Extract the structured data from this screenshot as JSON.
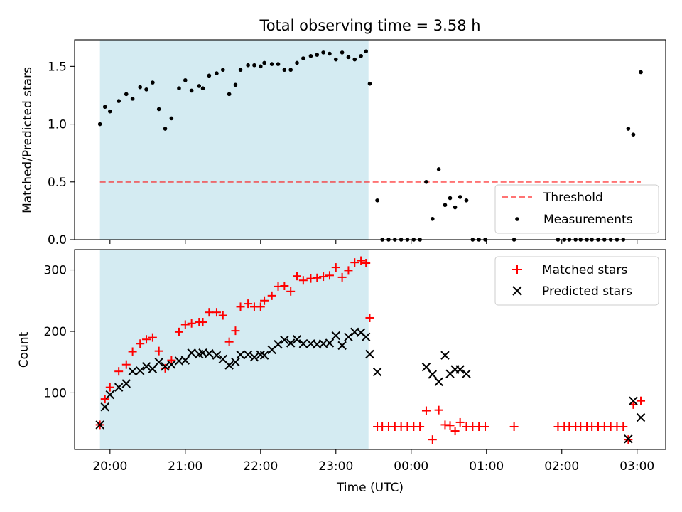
{
  "figure": {
    "title": "Total observing time = 3.58 h",
    "xlabel": "Time (UTC)"
  },
  "colors": {
    "band": "#add8e6",
    "threshold": "#ff0000",
    "measurements": "#000000",
    "matched": "#ff0000",
    "predicted": "#000000"
  },
  "chart_data": [
    {
      "type": "scatter",
      "panel": "top",
      "ylabel": "Matched/Predicted stars",
      "xlim_hours": [
        19.53,
        27.38
      ],
      "ylim": [
        0,
        1.73
      ],
      "yticks": [
        0.0,
        0.5,
        1.0,
        1.5
      ],
      "ytick_labels": [
        "0.0",
        "0.5",
        "1.0",
        "1.5"
      ],
      "xticks_hours": [
        20,
        21,
        22,
        23,
        24,
        25,
        26,
        27
      ],
      "xtick_labels": [
        "20:00",
        "21:00",
        "22:00",
        "23:00",
        "00:00",
        "01:00",
        "02:00",
        "03:00"
      ],
      "shaded_span": [
        "19:52",
        "23:26"
      ],
      "legend_position": "lower right",
      "threshold": {
        "name": "Threshold",
        "y": 0.5,
        "x_range": [
          "19:52",
          "03:03"
        ],
        "style": "dashed"
      },
      "series": [
        {
          "name": "Measurements",
          "marker": "dot",
          "points": [
            [
              "19:52",
              1.0
            ],
            [
              "19:56",
              1.15
            ],
            [
              "20:00",
              1.11
            ],
            [
              "20:07",
              1.2
            ],
            [
              "20:13",
              1.26
            ],
            [
              "20:18",
              1.22
            ],
            [
              "20:24",
              1.32
            ],
            [
              "20:29",
              1.3
            ],
            [
              "20:34",
              1.36
            ],
            [
              "20:39",
              1.13
            ],
            [
              "20:44",
              0.96
            ],
            [
              "20:49",
              1.05
            ],
            [
              "20:55",
              1.31
            ],
            [
              "21:00",
              1.38
            ],
            [
              "21:05",
              1.29
            ],
            [
              "21:11",
              1.33
            ],
            [
              "21:14",
              1.31
            ],
            [
              "21:19",
              1.42
            ],
            [
              "21:25",
              1.44
            ],
            [
              "21:30",
              1.47
            ],
            [
              "21:35",
              1.26
            ],
            [
              "21:40",
              1.34
            ],
            [
              "21:44",
              1.47
            ],
            [
              "21:50",
              1.51
            ],
            [
              "21:55",
              1.51
            ],
            [
              "22:00",
              1.5
            ],
            [
              "22:03",
              1.53
            ],
            [
              "22:09",
              1.52
            ],
            [
              "22:14",
              1.52
            ],
            [
              "22:19",
              1.47
            ],
            [
              "22:24",
              1.47
            ],
            [
              "22:29",
              1.53
            ],
            [
              "22:34",
              1.57
            ],
            [
              "22:40",
              1.59
            ],
            [
              "22:45",
              1.6
            ],
            [
              "22:50",
              1.62
            ],
            [
              "22:55",
              1.61
            ],
            [
              "23:00",
              1.56
            ],
            [
              "23:05",
              1.62
            ],
            [
              "23:10",
              1.58
            ],
            [
              "23:15",
              1.56
            ],
            [
              "23:20",
              1.59
            ],
            [
              "23:24",
              1.63
            ],
            [
              "23:27",
              1.35
            ],
            [
              "23:33",
              0.34
            ],
            [
              "23:37",
              0.0
            ],
            [
              "23:42",
              0.0
            ],
            [
              "23:47",
              0.0
            ],
            [
              "23:52",
              0.0
            ],
            [
              "23:57",
              0.0
            ],
            [
              "00:02",
              0.0
            ],
            [
              "00:07",
              0.0
            ],
            [
              "00:12",
              0.5
            ],
            [
              "00:17",
              0.18
            ],
            [
              "00:22",
              0.61
            ],
            [
              "00:27",
              0.3
            ],
            [
              "00:31",
              0.36
            ],
            [
              "00:35",
              0.28
            ],
            [
              "00:39",
              0.37
            ],
            [
              "00:44",
              0.34
            ],
            [
              "00:49",
              0.0
            ],
            [
              "00:54",
              0.0
            ],
            [
              "00:59",
              0.0
            ],
            [
              "01:22",
              0.0
            ],
            [
              "01:57",
              0.0
            ],
            [
              "02:02",
              0.0
            ],
            [
              "02:06",
              0.0
            ],
            [
              "02:11",
              0.0
            ],
            [
              "02:15",
              0.0
            ],
            [
              "02:20",
              0.0
            ],
            [
              "02:24",
              0.0
            ],
            [
              "02:29",
              0.0
            ],
            [
              "02:34",
              0.0
            ],
            [
              "02:39",
              0.0
            ],
            [
              "02:44",
              0.0
            ],
            [
              "02:49",
              0.0
            ],
            [
              "02:53",
              0.96
            ],
            [
              "02:57",
              0.91
            ],
            [
              "03:03",
              1.45
            ]
          ]
        }
      ]
    },
    {
      "type": "scatter",
      "panel": "bottom",
      "ylabel": "Count",
      "xlim_hours": [
        19.53,
        27.38
      ],
      "ylim": [
        8,
        333
      ],
      "yticks": [
        100,
        200,
        300
      ],
      "ytick_labels": [
        "100",
        "200",
        "300"
      ],
      "xticks_hours": [
        20,
        21,
        22,
        23,
        24,
        25,
        26,
        27
      ],
      "xtick_labels": [
        "20:00",
        "21:00",
        "22:00",
        "23:00",
        "00:00",
        "01:00",
        "02:00",
        "03:00"
      ],
      "shaded_span": [
        "19:52",
        "23:26"
      ],
      "legend_position": "upper right",
      "series": [
        {
          "name": "Matched stars",
          "marker": "plus",
          "points": [
            [
              "19:52",
              48
            ],
            [
              "19:56",
              90
            ],
            [
              "20:00",
              109
            ],
            [
              "20:07",
              135
            ],
            [
              "20:13",
              146
            ],
            [
              "20:18",
              167
            ],
            [
              "20:24",
              180
            ],
            [
              "20:29",
              187
            ],
            [
              "20:34",
              190
            ],
            [
              "20:39",
              168
            ],
            [
              "20:44",
              140
            ],
            [
              "20:49",
              153
            ],
            [
              "20:55",
              199
            ],
            [
              "21:00",
              211
            ],
            [
              "21:05",
              213
            ],
            [
              "21:11",
              215
            ],
            [
              "21:14",
              215
            ],
            [
              "21:19",
              231
            ],
            [
              "21:25",
              231
            ],
            [
              "21:30",
              226
            ],
            [
              "21:35",
              183
            ],
            [
              "21:40",
              201
            ],
            [
              "21:44",
              240
            ],
            [
              "21:50",
              245
            ],
            [
              "21:55",
              240
            ],
            [
              "22:00",
              240
            ],
            [
              "22:03",
              250
            ],
            [
              "22:09",
              258
            ],
            [
              "22:14",
              273
            ],
            [
              "22:19",
              274
            ],
            [
              "22:24",
              265
            ],
            [
              "22:29",
              290
            ],
            [
              "22:34",
              283
            ],
            [
              "22:40",
              286
            ],
            [
              "22:45",
              287
            ],
            [
              "22:50",
              289
            ],
            [
              "22:55",
              291
            ],
            [
              "23:00",
              304
            ],
            [
              "23:05",
              288
            ],
            [
              "23:10",
              299
            ],
            [
              "23:15",
              312
            ],
            [
              "23:20",
              315
            ],
            [
              "23:24",
              311
            ],
            [
              "23:27",
              222
            ],
            [
              "23:33",
              45
            ],
            [
              "23:37",
              45
            ],
            [
              "23:42",
              45
            ],
            [
              "23:47",
              45
            ],
            [
              "23:52",
              45
            ],
            [
              "23:57",
              45
            ],
            [
              "00:02",
              45
            ],
            [
              "00:07",
              45
            ],
            [
              "00:12",
              71
            ],
            [
              "00:17",
              24
            ],
            [
              "00:22",
              72
            ],
            [
              "00:27",
              48
            ],
            [
              "00:31",
              47
            ],
            [
              "00:35",
              38
            ],
            [
              "00:39",
              52
            ],
            [
              "00:44",
              45
            ],
            [
              "00:49",
              45
            ],
            [
              "00:54",
              45
            ],
            [
              "00:59",
              45
            ],
            [
              "01:22",
              45
            ],
            [
              "01:57",
              45
            ],
            [
              "02:02",
              45
            ],
            [
              "02:06",
              45
            ],
            [
              "02:11",
              45
            ],
            [
              "02:15",
              45
            ],
            [
              "02:20",
              45
            ],
            [
              "02:24",
              45
            ],
            [
              "02:29",
              45
            ],
            [
              "02:34",
              45
            ],
            [
              "02:39",
              45
            ],
            [
              "02:44",
              45
            ],
            [
              "02:49",
              45
            ],
            [
              "02:53",
              24
            ],
            [
              "02:57",
              81
            ],
            [
              "03:03",
              87
            ]
          ]
        },
        {
          "name": "Predicted stars",
          "marker": "x",
          "points": [
            [
              "19:52",
              48
            ],
            [
              "19:56",
              77
            ],
            [
              "20:00",
              97
            ],
            [
              "20:07",
              109
            ],
            [
              "20:13",
              115
            ],
            [
              "20:18",
              135
            ],
            [
              "20:24",
              136
            ],
            [
              "20:29",
              143
            ],
            [
              "20:34",
              139
            ],
            [
              "20:39",
              150
            ],
            [
              "20:44",
              143
            ],
            [
              "20:49",
              146
            ],
            [
              "20:55",
              152
            ],
            [
              "21:00",
              153
            ],
            [
              "21:05",
              165
            ],
            [
              "21:11",
              163
            ],
            [
              "21:14",
              165
            ],
            [
              "21:19",
              164
            ],
            [
              "21:25",
              161
            ],
            [
              "21:30",
              155
            ],
            [
              "21:35",
              145
            ],
            [
              "21:40",
              150
            ],
            [
              "21:44",
              162
            ],
            [
              "21:50",
              162
            ],
            [
              "21:55",
              158
            ],
            [
              "22:00",
              162
            ],
            [
              "22:03",
              161
            ],
            [
              "22:09",
              170
            ],
            [
              "22:14",
              179
            ],
            [
              "22:19",
              186
            ],
            [
              "22:24",
              181
            ],
            [
              "22:29",
              187
            ],
            [
              "22:34",
              180
            ],
            [
              "22:40",
              180
            ],
            [
              "22:45",
              179
            ],
            [
              "22:50",
              180
            ],
            [
              "22:55",
              181
            ],
            [
              "23:00",
              193
            ],
            [
              "23:05",
              177
            ],
            [
              "23:10",
              191
            ],
            [
              "23:15",
              199
            ],
            [
              "23:20",
              198
            ],
            [
              "23:24",
              191
            ],
            [
              "23:27",
              163
            ],
            [
              "23:33",
              134
            ],
            [
              "00:12",
              142
            ],
            [
              "00:17",
              130
            ],
            [
              "00:22",
              118
            ],
            [
              "00:27",
              161
            ],
            [
              "00:31",
              131
            ],
            [
              "00:35",
              138
            ],
            [
              "00:39",
              138
            ],
            [
              "00:44",
              131
            ],
            [
              "02:53",
              25
            ],
            [
              "02:57",
              87
            ],
            [
              "03:03",
              60
            ]
          ]
        }
      ]
    }
  ]
}
